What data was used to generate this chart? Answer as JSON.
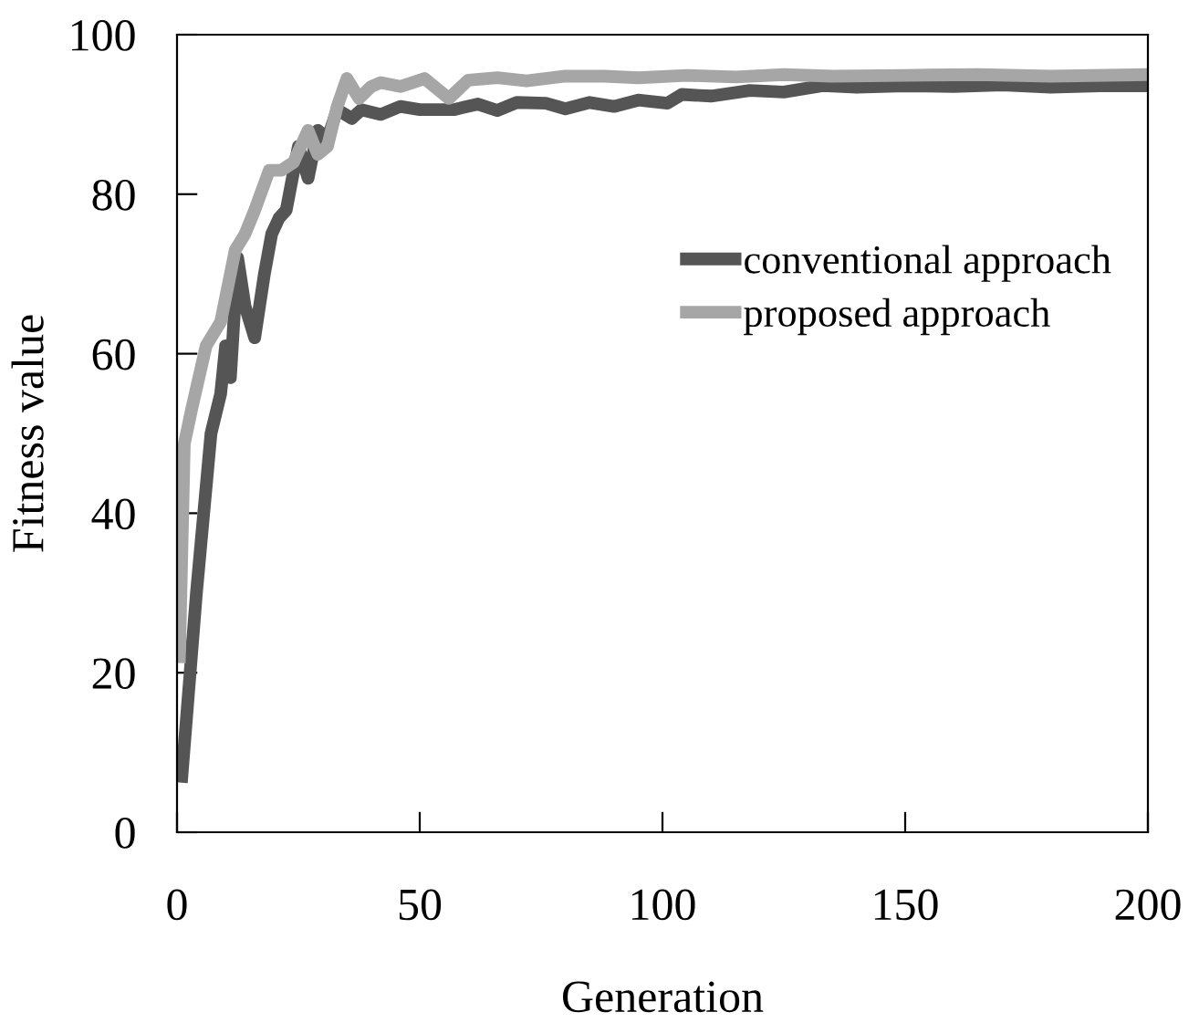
{
  "chart_data": {
    "type": "line",
    "xlabel": "Generation",
    "ylabel": "Fitness value",
    "xlim": [
      0,
      200
    ],
    "ylim": [
      0,
      100
    ],
    "xticks": [
      0,
      50,
      100,
      150,
      200
    ],
    "yticks": [
      0,
      20,
      40,
      60,
      80,
      100
    ],
    "grid": false,
    "legend": "right",
    "marker": "none",
    "line_style": "solid",
    "series": [
      {
        "name": "conventional approach",
        "color": "#555555",
        "x": [
          1,
          4,
          7,
          9,
          10,
          11,
          12.5,
          14,
          16,
          18,
          19.5,
          21,
          22.5,
          25,
          27,
          29,
          31,
          33,
          36,
          38,
          42,
          46,
          50,
          57,
          62,
          66,
          70,
          76,
          80,
          85,
          90,
          95,
          101,
          104,
          110,
          118,
          125,
          133,
          140,
          150,
          160,
          170,
          180,
          190,
          200
        ],
        "values": [
          7,
          30,
          50,
          55,
          61,
          57,
          72,
          66,
          62,
          70,
          75,
          77,
          78,
          86,
          82,
          88,
          87,
          90.6,
          89.5,
          90.6,
          90,
          91,
          90.6,
          90.6,
          91.3,
          90.5,
          91.5,
          91.4,
          90.7,
          91.5,
          91,
          91.8,
          91.4,
          92.5,
          92.3,
          93,
          92.8,
          93.6,
          93.4,
          93.6,
          93.5,
          93.7,
          93.4,
          93.6,
          93.6
        ]
      },
      {
        "name": "proposed approach",
        "color": "#a6a6a6",
        "x": [
          0.5,
          1.5,
          3,
          6,
          9,
          12,
          14,
          16,
          19,
          21.5,
          24,
          27,
          29,
          31,
          33,
          35,
          37.5,
          40,
          42,
          46,
          51,
          56,
          60,
          66,
          72,
          80,
          88,
          95,
          105,
          115,
          125,
          135,
          150,
          165,
          180,
          200
        ],
        "values": [
          22,
          48.7,
          53,
          61,
          64,
          73,
          75,
          78,
          83,
          83,
          84,
          88,
          85,
          86,
          91,
          94.5,
          92,
          93.5,
          94,
          93.5,
          94.5,
          92,
          94.3,
          94.6,
          94.2,
          94.8,
          94.8,
          94.6,
          94.9,
          94.7,
          95,
          94.8,
          94.9,
          95,
          94.8,
          95
        ]
      }
    ]
  }
}
